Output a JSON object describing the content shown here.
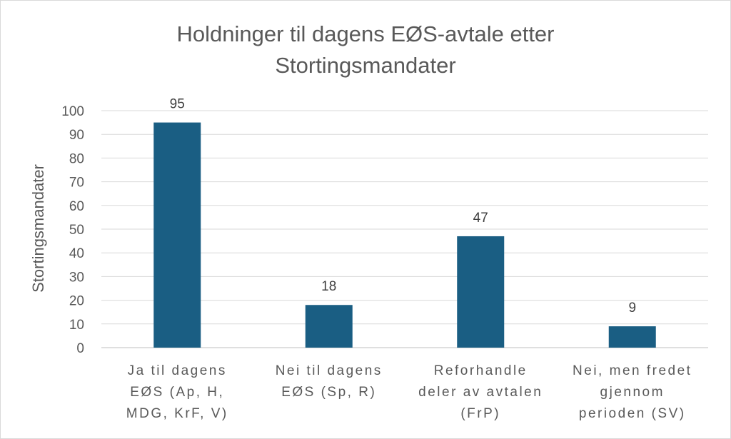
{
  "chart_data": {
    "type": "bar",
    "title_line1": "Holdninger til dagens EØS-avtale etter",
    "title_line2": "Stortingsmandater",
    "xlabel": "",
    "ylabel": "Stortingsmandater",
    "ylim": [
      0,
      100
    ],
    "yticks": [
      0,
      10,
      20,
      30,
      40,
      50,
      60,
      70,
      80,
      90,
      100
    ],
    "grid": true,
    "bar_color": "#1a5e83",
    "categories": [
      [
        "Ja til dagens",
        "EØS (Ap, H,",
        "MDG, KrF, V)"
      ],
      [
        "Nei til dagens",
        "EØS (Sp, R)"
      ],
      [
        "Reforhandle",
        "deler av avtalen",
        "(FrP)"
      ],
      [
        "Nei, men fredet",
        "gjennom",
        "perioden (SV)"
      ]
    ],
    "values": [
      95,
      18,
      47,
      9
    ],
    "data_labels": [
      "95",
      "18",
      "47",
      "9"
    ]
  }
}
